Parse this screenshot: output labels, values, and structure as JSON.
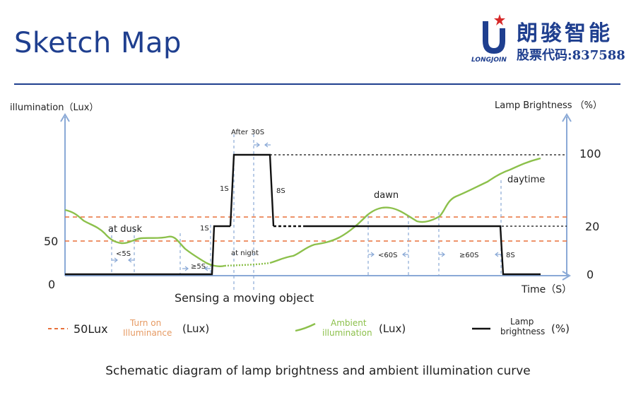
{
  "header": {
    "title": "Sketch Map",
    "logo_cn": "朗骏智能",
    "logo_brand": "LONGJOIN",
    "logo_stock": "股票代码:837588"
  },
  "axes": {
    "y_left_title": "illumination（Lux）",
    "y_right_title": "Lamp Brightness （%）",
    "x_title": "Time（S）",
    "y_left_ticks": [
      "50",
      "0"
    ],
    "y_right_ticks": [
      "100",
      "20",
      "0"
    ]
  },
  "annotations": {
    "after": "After",
    "after_30s": "30S",
    "one_s_up": "1S",
    "one_s_low": "1S",
    "eight_s_top": "8S",
    "at_dusk": "at dusk",
    "lt5s": "<5S",
    "ge5s": "≥5S",
    "at_night": "at night",
    "dawn": "dawn",
    "lt60s": "<60S",
    "ge60s": "≥60S",
    "eight_s_end": "8S",
    "daytime": "daytime",
    "sensing": "Sensing a moving object"
  },
  "legend": {
    "item1_value": "50Lux",
    "item1_name": "Turn on\nIlluminance",
    "item1_unit": "(Lux)",
    "item2_name": "Ambient\nillumination",
    "item2_unit": "(Lux)",
    "item3_name": "Lamp\nbrightness",
    "item3_unit": "(%)"
  },
  "colors": {
    "green": "#8cc04b",
    "orange": "#e8703a",
    "black": "#111111",
    "axis": "#8aa9d6",
    "brand": "#1f3f8f",
    "legend_orange_text": "#e69a63",
    "legend_green_text": "#8cc04b"
  },
  "caption": "Schematic diagram of lamp brightness and ambient illumination curve"
}
